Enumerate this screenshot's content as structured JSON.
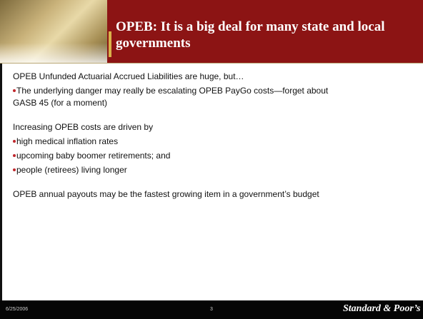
{
  "header": {
    "title": "OPEB: It is a big deal for many state and local governments"
  },
  "body": [
    {
      "text": "OPEB Unfunded Actuarial Accrued Liabilities are huge, but…",
      "bullet": false
    },
    {
      "text": "The underlying danger may really be escalating OPEB PayGo costs—forget about GASB 45 (for a moment)",
      "bullet": true
    },
    {
      "text": "Increasing OPEB costs are driven by",
      "bullet": false,
      "gap": true
    },
    {
      "text": "high medical inflation rates",
      "bullet": true
    },
    {
      "text": "upcoming baby boomer retirements; and",
      "bullet": true
    },
    {
      "text": "people (retirees) living longer",
      "bullet": true
    },
    {
      "text": "OPEB annual payouts may be the fastest growing item in a government’s budget",
      "bullet": false,
      "gap": true
    }
  ],
  "footer": {
    "date": "6/25/2006",
    "page": "3",
    "brand": "Standard & Poor’s"
  }
}
